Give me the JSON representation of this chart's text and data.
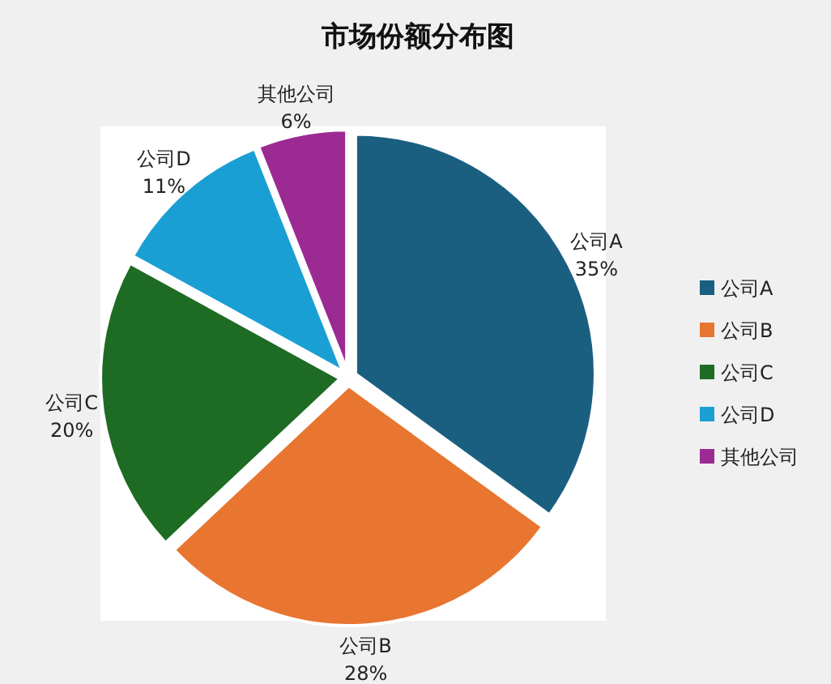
{
  "chart_data": {
    "type": "pie",
    "title": "市场份额分布图",
    "categories": [
      "公司A",
      "公司B",
      "公司C",
      "公司D",
      "其他公司"
    ],
    "values": [
      35,
      28,
      20,
      11,
      6
    ],
    "colors": [
      "#1a5f80",
      "#e87530",
      "#1e6b23",
      "#1a9fd4",
      "#9b2b93"
    ],
    "value_labels": [
      "35%",
      "28%",
      "20%",
      "11%",
      "6%"
    ],
    "legend": "right"
  }
}
